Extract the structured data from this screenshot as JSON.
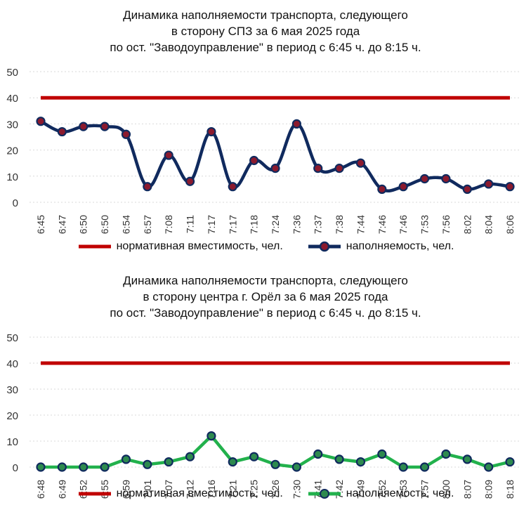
{
  "colors": {
    "norm": "#c00000",
    "top_line": "#102a5e",
    "top_marker_fill": "#8b1a2e",
    "bottom_line": "#22b14c",
    "bottom_marker_fill": "#2d8a4e",
    "grid": "#d9d9d9",
    "axis_text": "#333333"
  },
  "chart_data": [
    {
      "type": "line",
      "title_lines": [
        "Динамика наполняемости транспорта, следующего",
        "в сторону СПЗ за 6 мая 2025 года",
        "по ост. \"Заводоуправление\" в период с 6:45 ч. до 8:15 ч."
      ],
      "categories": [
        "6:45",
        "6:47",
        "6:50",
        "6:50",
        "6:54",
        "6:57",
        "7:08",
        "7:11",
        "7:17",
        "7:17",
        "7:18",
        "7:24",
        "7:36",
        "7:37",
        "7:38",
        "7:44",
        "7:46",
        "7:46",
        "7:53",
        "7:56",
        "8:02",
        "8:04",
        "8:06"
      ],
      "yticks": [
        "0",
        "10",
        "20",
        "30",
        "40",
        "50"
      ],
      "ylim": [
        0,
        50
      ],
      "grid": true,
      "legend_position": "bottom",
      "series": [
        {
          "name": "нормативная вместимость, чел.",
          "values": [
            40,
            40,
            40,
            40,
            40,
            40,
            40,
            40,
            40,
            40,
            40,
            40,
            40,
            40,
            40,
            40,
            40,
            40,
            40,
            40,
            40,
            40,
            40
          ]
        },
        {
          "name": "наполняемость, чел.",
          "values": [
            31,
            27,
            29,
            29,
            26,
            6,
            18,
            8,
            27,
            6,
            16,
            13,
            30,
            13,
            13,
            15,
            5,
            6,
            9,
            9,
            5,
            7,
            6
          ]
        }
      ]
    },
    {
      "type": "line",
      "title_lines": [
        "Динамика наполняемости транспорта, следующего",
        "в сторону центра г. Орёл за 6 мая 2025 года",
        "по ост. \"Заводоуправление\" в период с 6:45 ч. до 8:15 ч."
      ],
      "categories": [
        "6:48",
        "6:49",
        "6:52",
        "6:55",
        "6:59",
        "7:01",
        "7:07",
        "7:12",
        "7:16",
        "7:21",
        "7:25",
        "7:26",
        "7:30",
        "7:41",
        "7:42",
        "7:49",
        "7:52",
        "7:53",
        "7:57",
        "8:00",
        "8:07",
        "8:09",
        "8:18"
      ],
      "yticks": [
        "0",
        "10",
        "20",
        "30",
        "40",
        "50"
      ],
      "ylim": [
        0,
        50
      ],
      "grid": true,
      "legend_position": "bottom",
      "series": [
        {
          "name": "нормативная вместимость, чел.",
          "values": [
            40,
            40,
            40,
            40,
            40,
            40,
            40,
            40,
            40,
            40,
            40,
            40,
            40,
            40,
            40,
            40,
            40,
            40,
            40,
            40,
            40,
            40,
            40
          ]
        },
        {
          "name": "наполняемость, чел.",
          "values": [
            0,
            0,
            0,
            0,
            3,
            1,
            2,
            4,
            12,
            2,
            4,
            1,
            0,
            5,
            3,
            2,
            5,
            0,
            0,
            5,
            3,
            0,
            2
          ]
        }
      ]
    }
  ]
}
